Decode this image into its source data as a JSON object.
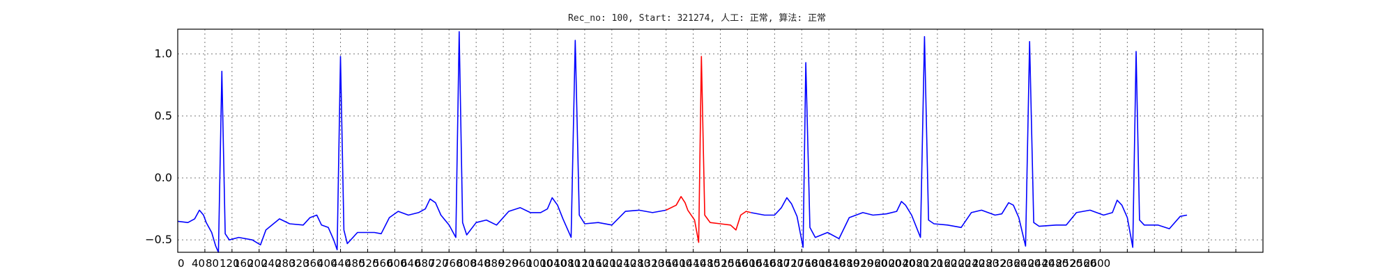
{
  "chart_data": {
    "type": "line",
    "title": "Rec_no: 100, Start: 321274, 人工: 正常, 算法: 正常",
    "xlabel": "",
    "ylabel": "",
    "xlim": [
      0,
      1600
    ],
    "ylim": [
      -0.6,
      1.2
    ],
    "yticks": [
      "−0.5",
      "0.0",
      "0.5",
      "1.0"
    ],
    "ytick_values": [
      -0.5,
      0.0,
      0.5,
      1.0
    ],
    "xticks": [
      "0",
      "40",
      "80",
      "120",
      "160",
      "200",
      "240",
      "280",
      "320",
      "360",
      "400",
      "440",
      "480",
      "520",
      "560",
      "600",
      "640",
      "680",
      "720",
      "760",
      "800",
      "840",
      "880",
      "920",
      "960",
      "1000",
      "1040",
      "1080",
      "1120",
      "1160",
      "1200",
      "1240",
      "1280",
      "1320",
      "1360",
      "1400",
      "1440",
      "1480",
      "1520",
      "1560",
      "1600",
      "1640",
      "1680",
      "1720",
      "1760",
      "1800",
      "1840",
      "1880",
      "1920",
      "1960",
      "2000",
      "2040",
      "2080",
      "2120",
      "2160",
      "2200",
      "2240",
      "2280",
      "2320",
      "2360",
      "2400",
      "2440",
      "2480",
      "2520",
      "2560",
      "2600"
    ],
    "xtick_values": [
      0,
      40,
      80,
      120,
      160,
      200,
      240,
      280,
      320,
      360,
      400,
      440,
      480,
      520,
      560,
      600,
      640,
      680,
      720,
      760,
      800,
      840,
      880,
      920,
      960,
      1000,
      1040,
      1080,
      1120,
      1160,
      1200,
      1240,
      1280,
      1320,
      1360,
      1400,
      1440,
      1480,
      1520,
      1560,
      1600,
      1640,
      1680,
      1720,
      1760,
      1800,
      1840,
      1880,
      1920,
      1960,
      2000,
      2040,
      2080,
      2120,
      2160,
      2200,
      2240,
      2280,
      2320,
      2360,
      2400,
      2440,
      2480,
      2520,
      2560,
      2600
    ],
    "grid": true,
    "colors": {
      "normal": "#0000ff",
      "highlight": "#ff0000",
      "grid": "#777777",
      "frame": "#000000"
    },
    "series": [
      {
        "color": "#0000ff",
        "points": [
          [
            0,
            -0.35
          ],
          [
            15,
            -0.36
          ],
          [
            25,
            -0.33
          ],
          [
            32,
            -0.26
          ],
          [
            38,
            -0.3
          ],
          [
            42,
            -0.36
          ],
          [
            50,
            -0.44
          ],
          [
            56,
            -0.55
          ],
          [
            60,
            -0.6
          ],
          [
            65,
            0.86
          ],
          [
            70,
            -0.45
          ],
          [
            76,
            -0.5
          ],
          [
            90,
            -0.48
          ],
          [
            110,
            -0.5
          ],
          [
            122,
            -0.54
          ],
          [
            130,
            -0.42
          ],
          [
            150,
            -0.33
          ],
          [
            165,
            -0.37
          ],
          [
            185,
            -0.38
          ],
          [
            195,
            -0.32
          ],
          [
            205,
            -0.3
          ],
          [
            212,
            -0.38
          ],
          [
            222,
            -0.4
          ],
          [
            230,
            -0.5
          ],
          [
            235,
            -0.58
          ],
          [
            240,
            0.98
          ],
          [
            245,
            -0.42
          ],
          [
            250,
            -0.53
          ],
          [
            265,
            -0.44
          ],
          [
            290,
            -0.44
          ],
          [
            300,
            -0.45
          ],
          [
            312,
            -0.32
          ],
          [
            325,
            -0.27
          ],
          [
            340,
            -0.3
          ],
          [
            355,
            -0.28
          ],
          [
            365,
            -0.25
          ],
          [
            372,
            -0.17
          ],
          [
            380,
            -0.2
          ],
          [
            388,
            -0.3
          ],
          [
            400,
            -0.38
          ],
          [
            410,
            -0.48
          ],
          [
            415,
            1.18
          ],
          [
            420,
            -0.36
          ],
          [
            426,
            -0.46
          ],
          [
            440,
            -0.36
          ],
          [
            455,
            -0.34
          ],
          [
            470,
            -0.38
          ],
          [
            488,
            -0.27
          ],
          [
            505,
            -0.24
          ],
          [
            520,
            -0.28
          ],
          [
            535,
            -0.28
          ],
          [
            545,
            -0.25
          ],
          [
            552,
            -0.16
          ],
          [
            560,
            -0.22
          ],
          [
            568,
            -0.33
          ],
          [
            580,
            -0.48
          ],
          [
            586,
            1.11
          ],
          [
            592,
            -0.3
          ],
          [
            600,
            -0.37
          ],
          [
            620,
            -0.36
          ],
          [
            640,
            -0.38
          ],
          [
            660,
            -0.27
          ],
          [
            680,
            -0.26
          ],
          [
            700,
            -0.28
          ],
          [
            720,
            -0.26
          ]
        ]
      },
      {
        "color": "#ff0000",
        "points": [
          [
            720,
            -0.26
          ],
          [
            735,
            -0.22
          ],
          [
            742,
            -0.15
          ],
          [
            748,
            -0.2
          ],
          [
            752,
            -0.26
          ],
          [
            762,
            -0.34
          ],
          [
            768,
            -0.52
          ],
          [
            772,
            0.98
          ],
          [
            777,
            -0.3
          ],
          [
            785,
            -0.36
          ],
          [
            800,
            -0.37
          ],
          [
            815,
            -0.38
          ],
          [
            823,
            -0.42
          ],
          [
            830,
            -0.3
          ],
          [
            838,
            -0.27
          ],
          [
            845,
            -0.28
          ]
        ]
      },
      {
        "color": "#0000ff",
        "points": [
          [
            845,
            -0.28
          ],
          [
            865,
            -0.3
          ],
          [
            880,
            -0.3
          ],
          [
            890,
            -0.24
          ],
          [
            898,
            -0.16
          ],
          [
            905,
            -0.21
          ],
          [
            913,
            -0.31
          ],
          [
            922,
            -0.56
          ],
          [
            926,
            0.93
          ],
          [
            932,
            -0.4
          ],
          [
            940,
            -0.48
          ],
          [
            958,
            -0.44
          ],
          [
            975,
            -0.49
          ],
          [
            990,
            -0.32
          ],
          [
            1010,
            -0.28
          ],
          [
            1025,
            -0.3
          ],
          [
            1045,
            -0.29
          ],
          [
            1060,
            -0.27
          ],
          [
            1067,
            -0.19
          ],
          [
            1073,
            -0.22
          ],
          [
            1082,
            -0.3
          ],
          [
            1095,
            -0.48
          ],
          [
            1101,
            1.14
          ],
          [
            1107,
            -0.34
          ],
          [
            1115,
            -0.37
          ],
          [
            1135,
            -0.38
          ],
          [
            1155,
            -0.4
          ],
          [
            1170,
            -0.28
          ],
          [
            1185,
            -0.26
          ],
          [
            1205,
            -0.3
          ],
          [
            1215,
            -0.29
          ],
          [
            1225,
            -0.2
          ],
          [
            1232,
            -0.22
          ],
          [
            1240,
            -0.32
          ],
          [
            1250,
            -0.55
          ],
          [
            1256,
            1.1
          ],
          [
            1262,
            -0.36
          ],
          [
            1270,
            -0.39
          ],
          [
            1295,
            -0.38
          ],
          [
            1310,
            -0.38
          ],
          [
            1325,
            -0.28
          ],
          [
            1345,
            -0.26
          ],
          [
            1365,
            -0.3
          ],
          [
            1378,
            -0.28
          ],
          [
            1385,
            -0.18
          ],
          [
            1392,
            -0.22
          ],
          [
            1400,
            -0.32
          ],
          [
            1408,
            -0.56
          ],
          [
            1413,
            1.02
          ],
          [
            1418,
            -0.34
          ],
          [
            1425,
            -0.38
          ],
          [
            1445,
            -0.38
          ],
          [
            1462,
            -0.41
          ],
          [
            1478,
            -0.31
          ],
          [
            1488,
            -0.3
          ]
        ]
      }
    ]
  }
}
